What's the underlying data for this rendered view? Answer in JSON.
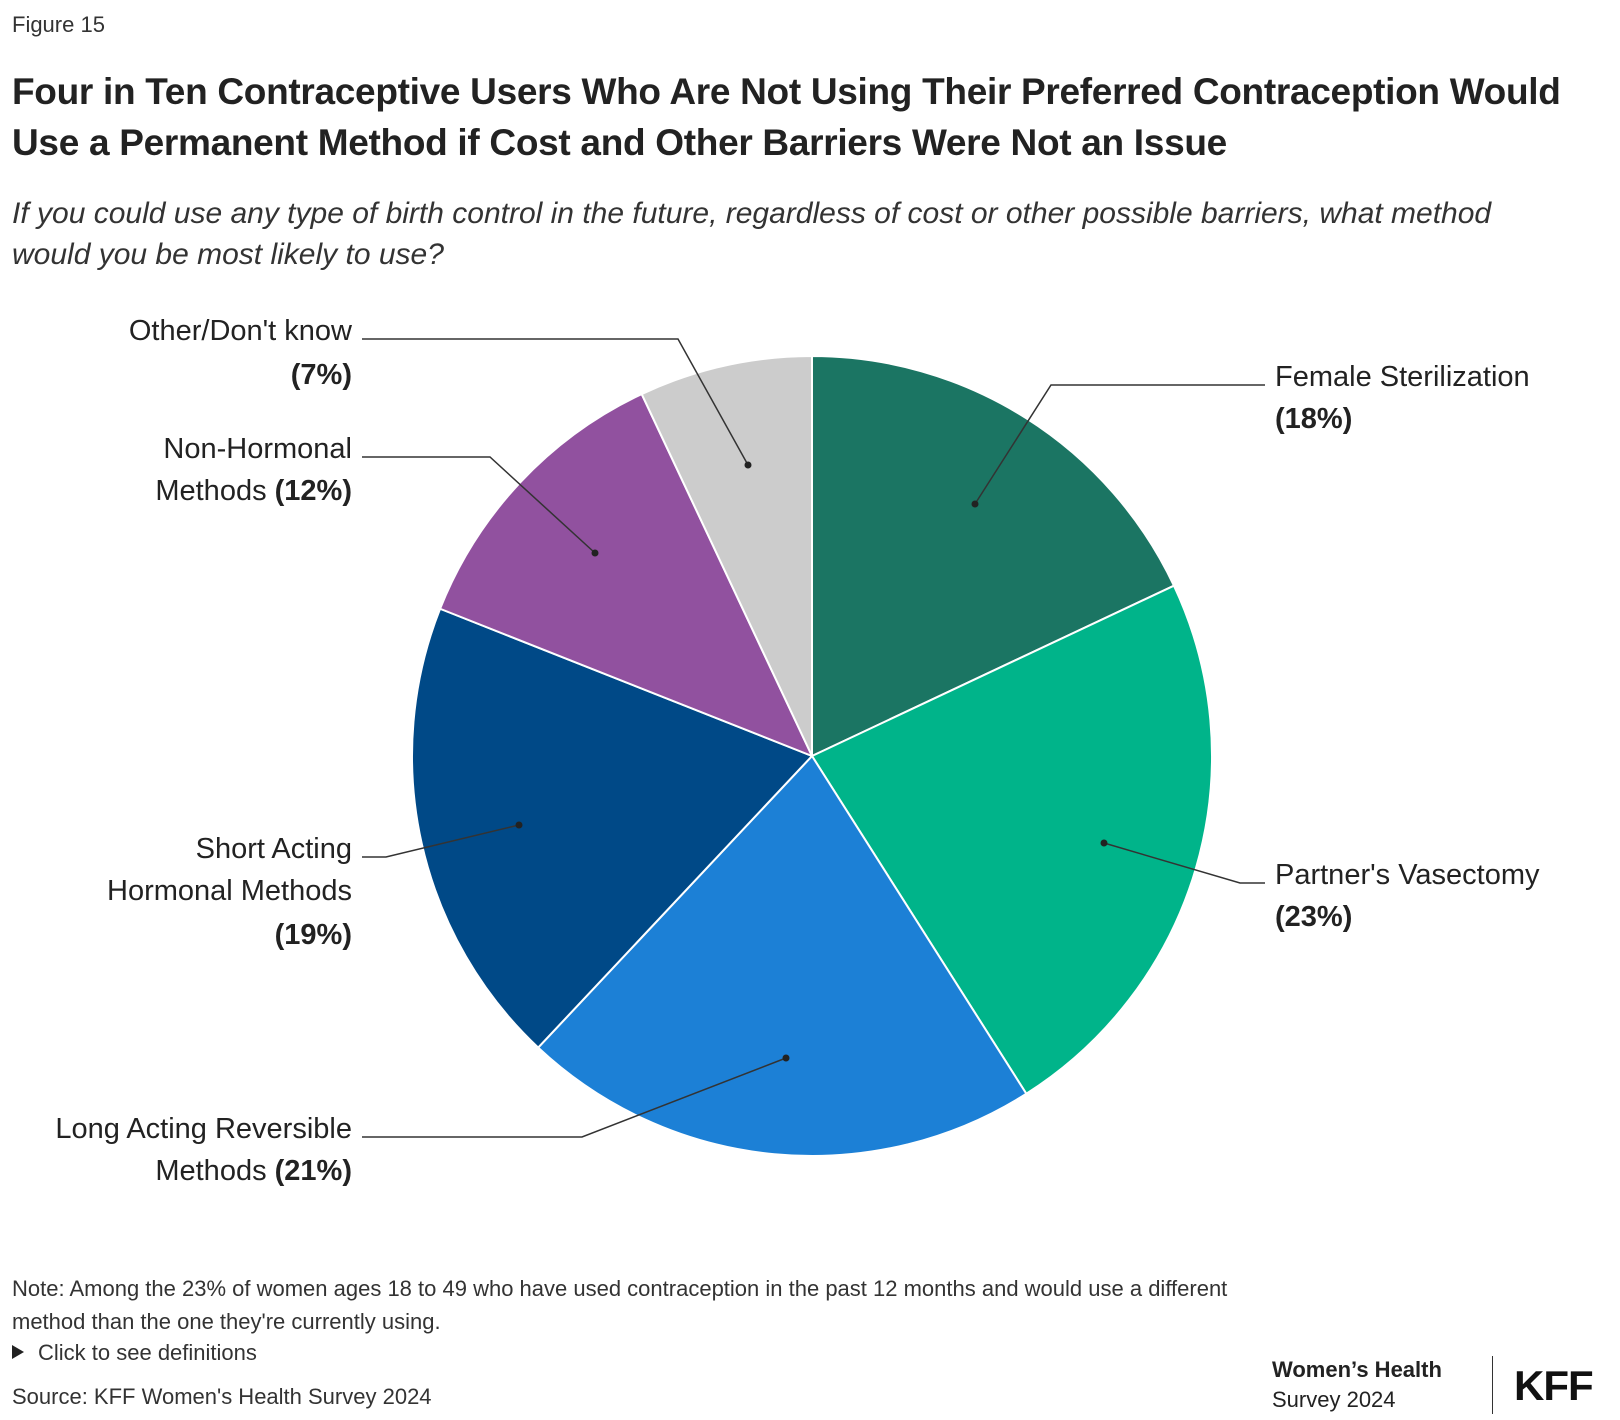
{
  "figure_label": "Figure 15",
  "title": "Four in Ten Contraceptive Users Who Are Not Using Their Preferred Contraception Would Use a Permanent Method if Cost and Other Barriers Were Not an Issue",
  "subtitle": "If you could use any type of birth control in the future, regardless of cost or other possible barriers, what method would you be most likely to use?",
  "chart_data": {
    "type": "pie",
    "title": "Four in Ten Contraceptive Users Who Are Not Using Their Preferred Contraception Would Use a Permanent Method if Cost and Other Barriers Were Not an Issue",
    "slices": [
      {
        "label": "Female Sterilization",
        "value": 18,
        "pct_label": "(18%)",
        "color": "#1b7563"
      },
      {
        "label": "Partner's Vasectomy",
        "value": 23,
        "pct_label": "(23%)",
        "color": "#00b48a"
      },
      {
        "label": "Long Acting Reversible Methods",
        "value": 21,
        "pct_label": "(21%)",
        "color": "#1c80d6"
      },
      {
        "label": "Short Acting Hormonal Methods",
        "value": 19,
        "pct_label": "(19%)",
        "color": "#004987"
      },
      {
        "label": "Non-Hormonal Methods",
        "value": 12,
        "pct_label": "(12%)",
        "color": "#91519f"
      },
      {
        "label": "Other/Don't know",
        "value": 7,
        "pct_label": "(7%)",
        "color": "#cccccc"
      }
    ]
  },
  "note": "Note: Among the 23% of women ages 18 to 49 who have used contraception in the past 12 months and would use a different method than the one they're currently using.",
  "definitions_link": "Click to see definitions",
  "source": "Source: KFF Women's Health Survey 2024",
  "brand": {
    "line1": "Women’s Health",
    "line2": "Survey 2024",
    "logo": "KFF"
  }
}
